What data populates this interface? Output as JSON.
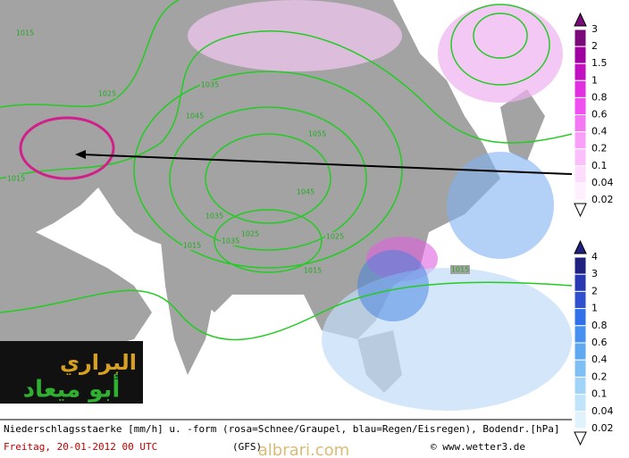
{
  "map": {
    "isobar_labels": [
      "1015",
      "1025",
      "1035",
      "1045",
      "1055",
      "1045",
      "1035",
      "1025",
      "1015",
      "1015",
      "1025",
      "1035",
      "1015",
      "1015"
    ]
  },
  "legend_snow": {
    "labels": [
      "3",
      "2",
      "1.5",
      "1",
      "0.8",
      "0.6",
      "0.4",
      "0.2",
      "0.1",
      "0.04",
      "0.02"
    ]
  },
  "legend_rain": {
    "labels": [
      "4",
      "3",
      "2",
      "1",
      "0.8",
      "0.6",
      "0.4",
      "0.2",
      "0.1",
      "0.04",
      "0.02"
    ]
  },
  "logo": {
    "line1": "البراري",
    "line2": "أبو ميعاد"
  },
  "footer": {
    "line1": "Niederschlagsstaerke [mm/h] u. -form (rosa=Schnee/Graupel, blau=Regen/Eisregen), Bodendr.[hPa]",
    "date": "Freitag, 20-01-2012  00 UTC",
    "model": "(GFS)",
    "credit": "© www.wetter3.de",
    "watermark": "albrari.com"
  }
}
